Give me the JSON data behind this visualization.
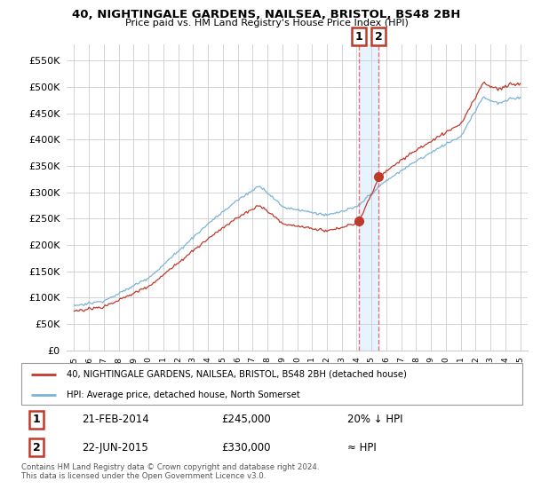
{
  "title": "40, NIGHTINGALE GARDENS, NAILSEA, BRISTOL, BS48 2BH",
  "subtitle": "Price paid vs. HM Land Registry's House Price Index (HPI)",
  "legend_line1": "40, NIGHTINGALE GARDENS, NAILSEA, BRISTOL, BS48 2BH (detached house)",
  "legend_line2": "HPI: Average price, detached house, North Somerset",
  "annotation1_date": "21-FEB-2014",
  "annotation1_price": "£245,000",
  "annotation1_hpi": "20% ↓ HPI",
  "annotation2_date": "22-JUN-2015",
  "annotation2_price": "£330,000",
  "annotation2_hpi": "≈ HPI",
  "footnote": "Contains HM Land Registry data © Crown copyright and database right 2024.\nThis data is licensed under the Open Government Licence v3.0.",
  "sale1_x": 2014.13,
  "sale1_y": 245000,
  "sale2_x": 2015.47,
  "sale2_y": 330000,
  "hpi_color": "#7ab4d8",
  "price_color": "#c0392b",
  "marker_color": "#c0392b",
  "vline_color": "#e57373",
  "shade_color": "#ddeeff",
  "ylim": [
    0,
    580000
  ],
  "xlim": [
    1994.5,
    2025.5
  ],
  "yticks": [
    0,
    50000,
    100000,
    150000,
    200000,
    250000,
    300000,
    350000,
    400000,
    450000,
    500000,
    550000
  ],
  "background_color": "#ffffff",
  "grid_color": "#cccccc"
}
